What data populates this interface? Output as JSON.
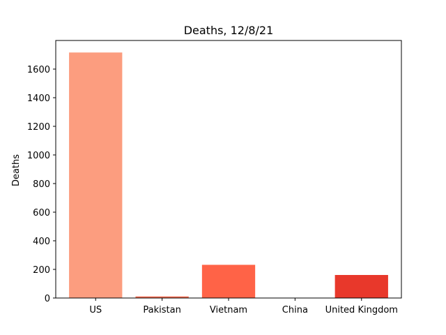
{
  "chart_data": {
    "type": "bar",
    "title": "Deaths, 12/8/21",
    "xlabel": "",
    "ylabel": "Deaths",
    "categories": [
      "US",
      "Pakistan",
      "Vietnam",
      "China",
      "United Kingdom"
    ],
    "values": [
      1716,
      11,
      232,
      0,
      161
    ],
    "colors": [
      "#fc9d7f",
      "#f26c51",
      "#ff6347",
      "#e23028",
      "#e8382b"
    ],
    "ylim": [
      0,
      1800
    ],
    "yticks": [
      0,
      200,
      400,
      600,
      800,
      1000,
      1200,
      1400,
      1600
    ],
    "ytick_labels": [
      "0",
      "200",
      "400",
      "600",
      "800",
      "1000",
      "1200",
      "1400",
      "1600"
    ],
    "grid": false,
    "legend": "none"
  }
}
